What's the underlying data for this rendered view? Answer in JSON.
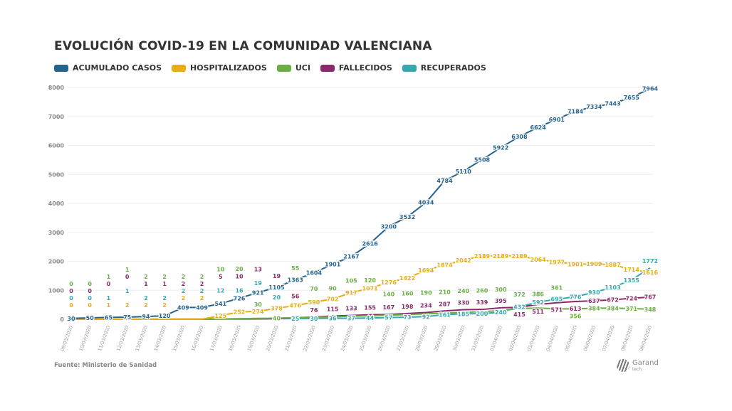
{
  "chart_data": {
    "type": "line",
    "title": "EVOLUCIÓN COVID-19 EN LA COMUNIDAD VALENCIANA",
    "source": "Fuente: Ministerio de Sanidad",
    "brand": {
      "name": "Garand",
      "sub": "tech"
    },
    "legend_position": "top-left",
    "grid": true,
    "ylim": [
      0,
      8000
    ],
    "yticks": [
      "0",
      "1000",
      "2000",
      "3000",
      "4000",
      "5000",
      "6000",
      "7000",
      "8000"
    ],
    "x": [
      "09/03/2020",
      "10/03/2020",
      "11/03/2020",
      "12/03/2020",
      "13/03/2020",
      "14/03/2020",
      "15/03/2020",
      "16/03/2020",
      "17/03/2020",
      "18/03/2020",
      "19/03/2020",
      "20/03/2020",
      "21/03/2020",
      "22/03/2020",
      "23/03/2020",
      "24/03/2020",
      "25/03/2020",
      "26/03/2020",
      "27/03/2020",
      "28/03/2020",
      "29/03/2020",
      "30/03/2020",
      "31/03/2020",
      "01/04/2020",
      "02/04/2020",
      "03/04/2020",
      "04/04/2020",
      "05/04/2020",
      "06/04/2020",
      "07/04/2020",
      "08/04/2020",
      "09/04/2020"
    ],
    "series": [
      {
        "name": "ACUMULADO CASOS",
        "color": "#24638e",
        "values": [
          30,
          50,
          65,
          75,
          94,
          120,
          409,
          409,
          541,
          726,
          921,
          1105,
          1363,
          1604,
          1901,
          2167,
          2616,
          3200,
          3532,
          4034,
          4784,
          5110,
          5508,
          5922,
          6308,
          6624,
          6901,
          7184,
          7334,
          7443,
          7655,
          7964
        ]
      },
      {
        "name": "HOSPITALIZADOS",
        "color": "#e9ad14",
        "values": [
          0,
          0,
          1,
          2,
          2,
          2,
          2,
          2,
          125,
          252,
          274,
          378,
          476,
          590,
          702,
          917,
          1071,
          1276,
          1422,
          1694,
          1874,
          2042,
          2189,
          2189,
          2189,
          2064,
          1977,
          1901,
          1909,
          1887,
          1714,
          1616
        ]
      },
      {
        "name": "UCI",
        "color": "#6aae45",
        "values": [
          0,
          0,
          1,
          1,
          2,
          2,
          2,
          2,
          10,
          20,
          30,
          40,
          55,
          70,
          90,
          105,
          120,
          140,
          160,
          190,
          210,
          240,
          260,
          300,
          372,
          386,
          361,
          356,
          384,
          384,
          371,
          348
        ]
      },
      {
        "name": "FALLECIDOS",
        "color": "#8b2a6b",
        "values": [
          0,
          0,
          0,
          0,
          1,
          1,
          2,
          2,
          5,
          10,
          13,
          19,
          56,
          76,
          115,
          133,
          155,
          167,
          198,
          234,
          287,
          330,
          339,
          395,
          415,
          511,
          571,
          613,
          637,
          672,
          724,
          767
        ]
      },
      {
        "name": "RECUPERADOS",
        "color": "#35a8ae",
        "values": [
          0,
          0,
          1,
          1,
          2,
          2,
          2,
          2,
          12,
          16,
          19,
          20,
          25,
          30,
          36,
          37,
          44,
          57,
          73,
          92,
          161,
          185,
          200,
          240,
          432,
          592,
          695,
          776,
          930,
          1103,
          1355,
          1772
        ]
      }
    ]
  }
}
